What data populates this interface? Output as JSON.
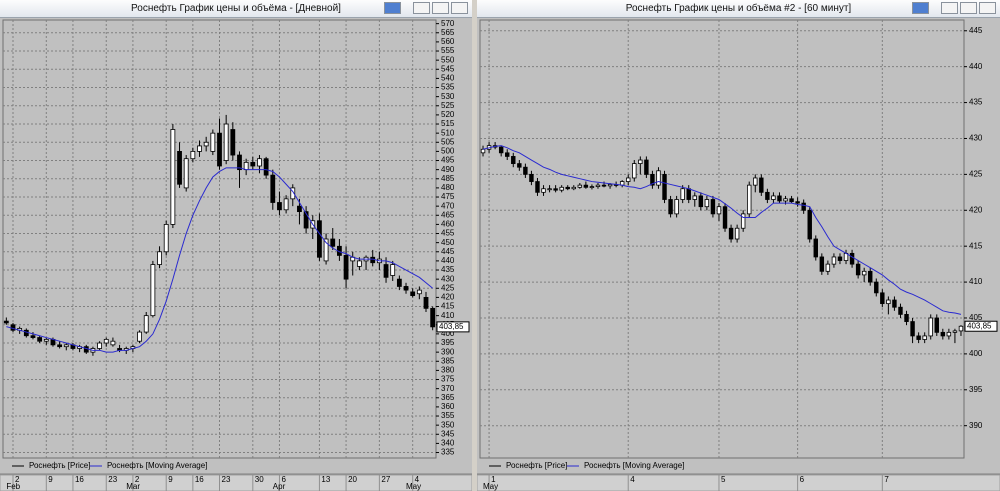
{
  "chart_data": [
    {
      "type": "candlestick",
      "title": "Роснефть График цены и объёма - [Дневной]",
      "categories": [
        null,
        "2",
        null,
        null,
        null,
        null,
        "9",
        null,
        null,
        null,
        "16",
        null,
        null,
        null,
        null,
        "23",
        null,
        null,
        null,
        "2",
        null,
        null,
        null,
        null,
        "9",
        null,
        null,
        null,
        "16",
        null,
        null,
        null,
        "23",
        null,
        null,
        null,
        null,
        "30",
        null,
        null,
        null,
        "6",
        null,
        null,
        null,
        null,
        null,
        "13",
        null,
        null,
        null,
        "20",
        null,
        null,
        null,
        null,
        "27",
        null,
        null,
        null,
        null,
        "4",
        null,
        null,
        null
      ],
      "months": [
        null,
        "Feb",
        null,
        null,
        null,
        null,
        null,
        null,
        null,
        null,
        null,
        null,
        null,
        null,
        null,
        null,
        null,
        null,
        null,
        "Mar",
        null,
        null,
        null,
        null,
        null,
        null,
        null,
        null,
        null,
        null,
        null,
        null,
        null,
        null,
        null,
        null,
        null,
        null,
        null,
        null,
        null,
        "Apr",
        null,
        null,
        null,
        null,
        null,
        null,
        null,
        null,
        null,
        null,
        null,
        null,
        null,
        null,
        null,
        null,
        null,
        null,
        null,
        "May",
        null,
        null,
        null
      ],
      "series": [
        {
          "name": "Роснефть [Price]",
          "color": "#000000",
          "open": [
            407,
            405,
            402,
            402,
            399,
            398,
            396,
            397,
            394,
            393,
            394,
            392,
            393,
            390,
            392,
            395,
            394,
            392,
            391,
            392,
            396,
            401,
            410,
            438,
            445,
            460,
            500,
            480,
            496,
            500,
            503,
            500,
            510,
            495,
            512,
            498,
            490,
            494,
            492,
            496,
            487,
            472,
            468,
            474,
            470,
            467,
            458,
            462,
            440,
            452,
            448,
            443,
            440,
            437,
            440,
            442,
            439,
            438,
            432,
            430,
            426,
            423,
            422,
            420,
            414
          ],
          "high": [
            409,
            406,
            404,
            403,
            401,
            399,
            398,
            398,
            396,
            395,
            395,
            394,
            394,
            393,
            396,
            398,
            398,
            394,
            393,
            394,
            402,
            412,
            440,
            448,
            462,
            515,
            505,
            498,
            502,
            506,
            508,
            512,
            518,
            520,
            516,
            500,
            496,
            497,
            498,
            497,
            490,
            478,
            476,
            482,
            474,
            470,
            465,
            466,
            455,
            458,
            452,
            448,
            445,
            442,
            443,
            446,
            445,
            442,
            440,
            432,
            428,
            425,
            426,
            423,
            415
          ],
          "low": [
            405,
            401,
            400,
            398,
            397,
            395,
            394,
            393,
            392,
            391,
            391,
            390,
            389,
            388,
            391,
            393,
            393,
            390,
            389,
            390,
            395,
            400,
            409,
            436,
            443,
            458,
            480,
            478,
            494,
            497,
            500,
            498,
            490,
            493,
            495,
            480,
            487,
            490,
            488,
            485,
            468,
            465,
            466,
            470,
            460,
            455,
            452,
            440,
            438,
            446,
            440,
            425,
            432,
            435,
            435,
            437,
            435,
            428,
            429,
            424,
            422,
            420,
            419,
            412,
            402
          ],
          "close": [
            406,
            402,
            403,
            399,
            398,
            396,
            397,
            394,
            393,
            394,
            392,
            393,
            390,
            392,
            395,
            397,
            396,
            391,
            392,
            393,
            401,
            410,
            438,
            445,
            460,
            512,
            482,
            496,
            500,
            503,
            505,
            510,
            492,
            515,
            498,
            490,
            494,
            492,
            496,
            487,
            472,
            468,
            474,
            480,
            467,
            458,
            462,
            442,
            452,
            448,
            443,
            430,
            442,
            440,
            442,
            439,
            441,
            431,
            438,
            426,
            424,
            421,
            424,
            414,
            403.85
          ]
        },
        {
          "name": "Роснефть [Moving Average]",
          "color": "#2a2ad0",
          "type": "line",
          "values": [
            404,
            403,
            402,
            401,
            400,
            399,
            398,
            397,
            396,
            395,
            394,
            393,
            392,
            391,
            391,
            390,
            390,
            391,
            391,
            392,
            393,
            396,
            400,
            408,
            418,
            430,
            443,
            455,
            465,
            473,
            480,
            486,
            489,
            491,
            491,
            491,
            490,
            490,
            490,
            490,
            489,
            486,
            482,
            478,
            472,
            466,
            460,
            455,
            450,
            447,
            445,
            444,
            442,
            441,
            441,
            441,
            440,
            440,
            439,
            437,
            435,
            433,
            431,
            428,
            425
          ]
        }
      ],
      "last_price": {
        "value": 403.85,
        "label": "403,85"
      },
      "ylim": [
        332,
        572
      ],
      "yticks": [
        335,
        340,
        345,
        350,
        355,
        360,
        365,
        370,
        375,
        380,
        385,
        390,
        395,
        400,
        405,
        410,
        415,
        420,
        425,
        430,
        435,
        440,
        445,
        450,
        455,
        460,
        465,
        470,
        475,
        480,
        485,
        490,
        495,
        500,
        505,
        510,
        515,
        520,
        525,
        530,
        535,
        540,
        545,
        550,
        555,
        560,
        565,
        570
      ],
      "grid": true
    },
    {
      "type": "candlestick",
      "title": "Роснефть График цены и объёма #2 - [60 минут]",
      "categories": [
        null,
        "1",
        null,
        null,
        null,
        null,
        null,
        null,
        null,
        null,
        null,
        null,
        null,
        null,
        null,
        null,
        null,
        null,
        null,
        null,
        null,
        null,
        null,
        null,
        "4",
        null,
        null,
        null,
        null,
        null,
        null,
        null,
        null,
        null,
        null,
        null,
        null,
        null,
        null,
        "5",
        null,
        null,
        null,
        null,
        null,
        null,
        null,
        null,
        null,
        null,
        null,
        null,
        "6",
        null,
        null,
        null,
        null,
        null,
        null,
        null,
        null,
        null,
        null,
        null,
        null,
        null,
        "7",
        null,
        null,
        null,
        null,
        null,
        null,
        null,
        null,
        null,
        null,
        null,
        null,
        null
      ],
      "months": [
        null,
        "May",
        null,
        null,
        null,
        null,
        null,
        null,
        null,
        null,
        null,
        null,
        null,
        null,
        null,
        null,
        null,
        null,
        null,
        null,
        null,
        null,
        null,
        null,
        null,
        null,
        null,
        null,
        null,
        null,
        null,
        null,
        null,
        null,
        null,
        null,
        null,
        null,
        null,
        null,
        null,
        null,
        null,
        null,
        null,
        null,
        null,
        null,
        null,
        null,
        null,
        null,
        null,
        null,
        null,
        null,
        null,
        null,
        null,
        null,
        null,
        null,
        null,
        null,
        null,
        null,
        null,
        null,
        null,
        null,
        null,
        null,
        null,
        null,
        null,
        null,
        null,
        null,
        null,
        null
      ],
      "series": [
        {
          "name": "Роснефть [Price]",
          "color": "#000000",
          "open": [
            428,
            428.5,
            429,
            428.8,
            428,
            427.5,
            426.5,
            426,
            425,
            424,
            422.5,
            423,
            423,
            422.8,
            423.2,
            423,
            423.2,
            423.5,
            423.2,
            423.3,
            423.5,
            423.4,
            423.6,
            423.5,
            424,
            424.5,
            426.5,
            427,
            425,
            423.5,
            425,
            421.5,
            419.5,
            421.5,
            423,
            421.5,
            422,
            420.5,
            421.5,
            419.5,
            420.5,
            417.5,
            416,
            417.5,
            419.5,
            423.5,
            424.5,
            422.5,
            421.5,
            422,
            421.3,
            421.6,
            421.2,
            421,
            420,
            416,
            413.5,
            411.5,
            412.5,
            413.5,
            413,
            414,
            412.5,
            411,
            411.5,
            410,
            408.5,
            407,
            407.5,
            406.5,
            405.5,
            404.5,
            402.5,
            402,
            402.5,
            405,
            403,
            402.5,
            403,
            403.2
          ],
          "high": [
            429,
            429.5,
            429.5,
            429,
            428.5,
            428,
            427,
            426.5,
            425.5,
            424.5,
            423.5,
            423.5,
            423.5,
            423.5,
            423.5,
            423.5,
            423.8,
            424,
            423.6,
            423.8,
            424,
            423.8,
            424,
            424.2,
            425,
            427,
            427.5,
            427.5,
            425.5,
            426,
            425.5,
            422,
            422,
            423.5,
            423.5,
            422.5,
            422.5,
            422,
            422,
            421,
            421,
            418,
            418,
            420,
            424,
            425,
            425,
            423,
            422.5,
            422.5,
            422,
            422,
            421.8,
            421.5,
            420.5,
            416.5,
            414,
            413,
            414,
            414,
            414.5,
            414.5,
            413,
            412,
            412,
            410.5,
            409,
            408,
            408,
            407,
            406,
            405,
            403,
            403,
            405.5,
            405.5,
            403.5,
            403.5,
            403.5,
            404
          ],
          "low": [
            427.5,
            428,
            428.5,
            427.5,
            427,
            426,
            425.5,
            424.5,
            423.5,
            422,
            422,
            422.5,
            422.5,
            422.5,
            422.8,
            422.8,
            423,
            423,
            422.9,
            423,
            423.2,
            423,
            423.2,
            423.2,
            423.5,
            424,
            425,
            424.5,
            423,
            423,
            421,
            419,
            419,
            421,
            421,
            420.5,
            420,
            420,
            419,
            418.5,
            417,
            415.5,
            415.5,
            417,
            419,
            422.5,
            422,
            421,
            421,
            421,
            420.8,
            421,
            420.5,
            419.5,
            415.5,
            413,
            411,
            411,
            412,
            412.5,
            412.5,
            412,
            410.5,
            410,
            409.5,
            408,
            406.5,
            405.5,
            406,
            405,
            404,
            401.5,
            401.5,
            401.5,
            402,
            402.5,
            402,
            402,
            401.5,
            402.5
          ],
          "close": [
            428.5,
            429,
            428.8,
            428,
            427.5,
            426.5,
            426,
            425,
            424,
            422.5,
            423,
            423,
            422.8,
            423.2,
            423,
            423.2,
            423.5,
            423.2,
            423.3,
            423.5,
            423.4,
            423.6,
            423.5,
            424,
            424.5,
            426.5,
            427,
            425,
            423.5,
            425.5,
            421.5,
            419.5,
            421.5,
            423,
            421.5,
            422,
            420.5,
            421.5,
            419.5,
            420.5,
            417.5,
            416,
            417.5,
            419.5,
            423.5,
            424.5,
            422.5,
            421.5,
            422,
            421.3,
            421.6,
            421.2,
            421,
            420,
            416,
            413.5,
            411.5,
            412.5,
            413.5,
            413,
            414,
            412.5,
            411,
            411.5,
            410,
            408.5,
            407,
            407.5,
            406.5,
            405.5,
            404.5,
            402.5,
            402,
            402.5,
            405,
            403,
            402.5,
            403,
            403.2,
            403.85
          ]
        },
        {
          "name": "Роснефть [Moving Average]",
          "color": "#2a2ad0",
          "type": "line",
          "values": [
            428.5,
            428.7,
            428.9,
            429,
            428.7,
            428.3,
            428,
            427.5,
            427,
            426.5,
            426,
            425.7,
            425.3,
            425,
            424.8,
            424.6,
            424.4,
            424.2,
            424,
            423.9,
            423.8,
            423.7,
            423.6,
            423.5,
            423.3,
            423.2,
            423,
            423.3,
            423.7,
            424,
            423.8,
            423.6,
            423.4,
            423.2,
            423,
            422.7,
            422.4,
            422.1,
            421.8,
            421.5,
            420.9,
            420.3,
            419.6,
            419,
            419,
            419,
            419.7,
            420.3,
            421,
            421,
            421,
            421,
            420.8,
            420.7,
            420.5,
            419,
            417.7,
            416.3,
            415,
            414.5,
            414,
            413.5,
            413,
            412.5,
            412,
            411.5,
            411,
            410.3,
            409.7,
            409,
            408.6,
            408.3,
            407.9,
            407.5,
            407,
            406.5,
            406,
            405.8,
            405.7,
            405.5
          ]
        }
      ],
      "last_price": {
        "value": 403.85,
        "label": "403,85"
      },
      "ylim": [
        385.5,
        446.5
      ],
      "yticks": [
        390,
        395,
        400,
        405,
        410,
        415,
        420,
        425,
        430,
        435,
        440,
        445
      ],
      "grid": true
    }
  ]
}
